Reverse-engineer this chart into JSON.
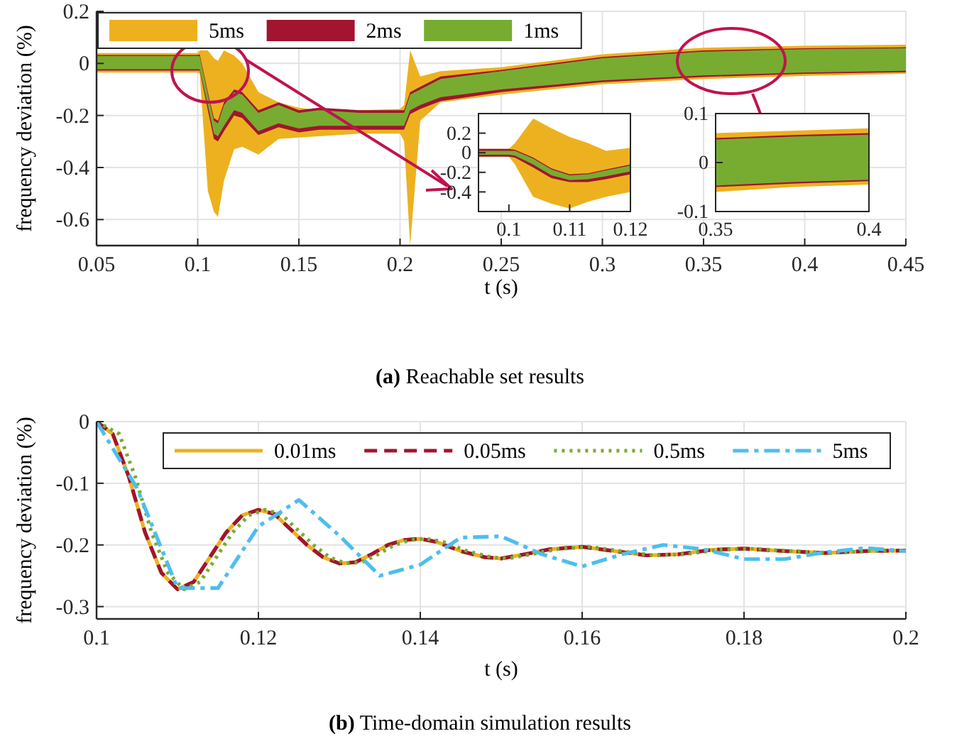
{
  "chart_data": [
    {
      "type": "area",
      "title": "(a) Reachable set results",
      "xlabel": "t (s)",
      "ylabel": "frequency deviation (%)",
      "x": [
        0.05,
        0.1,
        0.101,
        0.105,
        0.108,
        0.11,
        0.113,
        0.118,
        0.122,
        0.13,
        0.14,
        0.15,
        0.16,
        0.18,
        0.2,
        0.202,
        0.205,
        0.21,
        0.22,
        0.25,
        0.3,
        0.35,
        0.4,
        0.45
      ],
      "series": [
        {
          "name": "5ms",
          "color": "#edb120",
          "values": [
            null,
            null,
            null,
            null,
            null,
            null,
            null,
            null,
            null,
            null,
            null,
            null,
            null,
            null,
            null,
            null,
            null,
            null,
            null,
            null,
            null,
            null,
            null,
            null
          ],
          "lower": [
            -0.035,
            -0.035,
            -0.04,
            -0.49,
            -0.57,
            -0.59,
            -0.45,
            -0.33,
            -0.32,
            -0.35,
            -0.29,
            -0.285,
            -0.28,
            -0.27,
            -0.27,
            -0.3,
            -0.7,
            -0.22,
            -0.15,
            -0.12,
            -0.08,
            -0.06,
            -0.048,
            -0.04
          ],
          "upper": [
            0.04,
            0.04,
            0.05,
            0.05,
            0.02,
            0.01,
            0.05,
            0.03,
            0.0,
            -0.11,
            -0.15,
            -0.17,
            -0.18,
            -0.18,
            -0.175,
            -0.16,
            0.05,
            -0.05,
            -0.03,
            -0.015,
            0.035,
            0.06,
            0.068,
            0.072
          ]
        },
        {
          "name": "2ms",
          "color": "#a2142f",
          "values": [
            null,
            null,
            null,
            null,
            null,
            null,
            null,
            null,
            null,
            null,
            null,
            null,
            null,
            null,
            null,
            null,
            null,
            null,
            null,
            null,
            null,
            null,
            null,
            null
          ],
          "lower": [
            -0.028,
            -0.028,
            -0.028,
            -0.18,
            -0.29,
            -0.3,
            -0.26,
            -0.2,
            -0.21,
            -0.275,
            -0.245,
            -0.265,
            -0.255,
            -0.255,
            -0.255,
            -0.255,
            -0.195,
            -0.175,
            -0.145,
            -0.11,
            -0.072,
            -0.052,
            -0.04,
            -0.034
          ],
          "upper": [
            0.032,
            0.032,
            0.035,
            -0.11,
            -0.21,
            -0.22,
            -0.15,
            -0.1,
            -0.11,
            -0.18,
            -0.15,
            -0.18,
            -0.17,
            -0.18,
            -0.18,
            -0.18,
            -0.11,
            -0.09,
            -0.05,
            -0.025,
            0.025,
            0.05,
            0.058,
            0.062
          ]
        },
        {
          "name": "1ms",
          "color": "#77ac30",
          "values": [
            null,
            null,
            null,
            null,
            null,
            null,
            null,
            null,
            null,
            null,
            null,
            null,
            null,
            null,
            null,
            null,
            null,
            null,
            null,
            null,
            null,
            null,
            null,
            null
          ],
          "lower": [
            -0.022,
            -0.022,
            -0.022,
            -0.16,
            -0.27,
            -0.28,
            -0.24,
            -0.18,
            -0.19,
            -0.26,
            -0.23,
            -0.25,
            -0.24,
            -0.24,
            -0.24,
            -0.24,
            -0.18,
            -0.16,
            -0.13,
            -0.1,
            -0.065,
            -0.046,
            -0.035,
            -0.028
          ],
          "upper": [
            0.028,
            0.028,
            0.028,
            -0.12,
            -0.22,
            -0.23,
            -0.16,
            -0.11,
            -0.12,
            -0.19,
            -0.16,
            -0.19,
            -0.18,
            -0.19,
            -0.19,
            -0.19,
            -0.12,
            -0.1,
            -0.06,
            -0.03,
            0.02,
            0.045,
            0.055,
            0.058
          ]
        }
      ],
      "xlim": [
        0.05,
        0.45
      ],
      "xticks": [
        0.05,
        0.1,
        0.15,
        0.2,
        0.25,
        0.3,
        0.35,
        0.4,
        0.45
      ],
      "ylim": [
        -0.7,
        0.2
      ],
      "yticks": [
        -0.6,
        -0.4,
        -0.2,
        0,
        0.2
      ],
      "grid": true,
      "legend": "top left"
    },
    {
      "type": "area",
      "x": [
        0.095,
        0.1,
        0.101,
        0.104,
        0.107,
        0.11,
        0.113,
        0.116,
        0.12
      ],
      "series": [
        {
          "color": "#edb120",
          "values": [
            null,
            null,
            null,
            null,
            null,
            null,
            null,
            null,
            null
          ],
          "lower": [
            -0.04,
            -0.04,
            -0.12,
            -0.45,
            -0.52,
            -0.57,
            -0.5,
            -0.45,
            -0.4
          ],
          "upper": [
            0.04,
            0.04,
            0.1,
            0.35,
            0.25,
            0.16,
            0.1,
            0.02,
            0.05
          ]
        },
        {
          "color": "#a2142f",
          "values": [
            null,
            null,
            null,
            null,
            null,
            null,
            null,
            null,
            null
          ],
          "lower": [
            -0.04,
            -0.04,
            -0.05,
            -0.15,
            -0.26,
            -0.3,
            -0.3,
            -0.27,
            -0.22
          ],
          "upper": [
            0.04,
            0.04,
            0.03,
            -0.05,
            -0.16,
            -0.22,
            -0.21,
            -0.17,
            -0.12
          ]
        },
        {
          "color": "#77ac30",
          "values": [
            null,
            null,
            null,
            null,
            null,
            null,
            null,
            null,
            null
          ],
          "lower": [
            -0.02,
            -0.02,
            -0.03,
            -0.12,
            -0.23,
            -0.28,
            -0.27,
            -0.24,
            -0.19
          ],
          "upper": [
            0.02,
            0.02,
            0.02,
            -0.06,
            -0.17,
            -0.23,
            -0.22,
            -0.18,
            -0.13
          ]
        }
      ],
      "xlim": [
        0.095,
        0.12
      ],
      "xticks": [
        0.1,
        0.11,
        0.12
      ],
      "ylim": [
        -0.6,
        0.4
      ],
      "yticks": [
        -0.4,
        -0.2,
        0,
        0.2
      ]
    },
    {
      "type": "area",
      "x": [
        0.35,
        0.375,
        0.4
      ],
      "series": [
        {
          "color": "#edb120",
          "values": [
            null,
            null,
            null
          ],
          "lower": [
            -0.06,
            -0.05,
            -0.045
          ],
          "upper": [
            0.06,
            0.065,
            0.07
          ]
        },
        {
          "color": "#a2142f",
          "values": [
            null,
            null,
            null
          ],
          "lower": [
            -0.05,
            -0.043,
            -0.038
          ],
          "upper": [
            0.05,
            0.056,
            0.06
          ]
        },
        {
          "color": "#77ac30",
          "values": [
            null,
            null,
            null
          ],
          "lower": [
            -0.047,
            -0.04,
            -0.035
          ],
          "upper": [
            0.047,
            0.053,
            0.057
          ]
        }
      ],
      "xlim": [
        0.35,
        0.4
      ],
      "xticks": [
        0.35,
        0.4
      ],
      "ylim": [
        -0.1,
        0.1
      ],
      "yticks": [
        -0.1,
        0,
        0.1
      ]
    },
    {
      "type": "line",
      "title": "(b) Time-domain simulation results",
      "xlabel": "t (s)",
      "ylabel": "frequency deviation (%)",
      "x": [
        0.1,
        0.102,
        0.104,
        0.106,
        0.108,
        0.11,
        0.112,
        0.114,
        0.116,
        0.118,
        0.12,
        0.122,
        0.124,
        0.126,
        0.128,
        0.13,
        0.132,
        0.134,
        0.136,
        0.138,
        0.14,
        0.142,
        0.145,
        0.148,
        0.15,
        0.153,
        0.156,
        0.16,
        0.164,
        0.168,
        0.172,
        0.176,
        0.18,
        0.185,
        0.19,
        0.195,
        0.2
      ],
      "series": [
        {
          "name": "0.01ms",
          "color": "#edb120",
          "line_style": "solid",
          "values": [
            0,
            -0.02,
            -0.09,
            -0.18,
            -0.245,
            -0.272,
            -0.26,
            -0.22,
            -0.18,
            -0.152,
            -0.143,
            -0.15,
            -0.175,
            -0.2,
            -0.22,
            -0.23,
            -0.228,
            -0.215,
            -0.2,
            -0.192,
            -0.19,
            -0.195,
            -0.21,
            -0.22,
            -0.222,
            -0.215,
            -0.207,
            -0.203,
            -0.21,
            -0.217,
            -0.215,
            -0.208,
            -0.206,
            -0.21,
            -0.213,
            -0.21,
            -0.209
          ]
        },
        {
          "name": "0.05ms",
          "color": "#a2142f",
          "line_style": "dashed",
          "values": [
            0,
            -0.02,
            -0.09,
            -0.18,
            -0.245,
            -0.272,
            -0.26,
            -0.22,
            -0.18,
            -0.152,
            -0.143,
            -0.15,
            -0.175,
            -0.2,
            -0.22,
            -0.23,
            -0.228,
            -0.215,
            -0.2,
            -0.192,
            -0.19,
            -0.195,
            -0.21,
            -0.22,
            -0.222,
            -0.215,
            -0.207,
            -0.203,
            -0.21,
            -0.217,
            -0.215,
            -0.208,
            -0.206,
            -0.21,
            -0.213,
            -0.21,
            -0.209
          ]
        },
        {
          "name": "0.5ms",
          "color": "#77ac30",
          "line_style": "dotted",
          "x": [
            0.1,
            0.1028,
            0.1048,
            0.1068,
            0.1088,
            0.1108,
            0.1128,
            0.1148,
            0.1168,
            0.1188,
            0.1208,
            0.1228,
            0.1248,
            0.1268,
            0.1288,
            0.1308,
            0.1328,
            0.1348,
            0.1368,
            0.1388,
            0.1408,
            0.1428,
            0.1458,
            0.1488,
            0.1508,
            0.1538,
            0.1568,
            0.1608,
            0.1648,
            0.1688,
            0.1728,
            0.1768,
            0.1808,
            0.1858,
            0.1908,
            0.1958,
            0.2
          ],
          "values": [
            0,
            -0.02,
            -0.09,
            -0.18,
            -0.245,
            -0.272,
            -0.26,
            -0.22,
            -0.18,
            -0.152,
            -0.143,
            -0.15,
            -0.175,
            -0.2,
            -0.22,
            -0.23,
            -0.228,
            -0.215,
            -0.2,
            -0.192,
            -0.19,
            -0.195,
            -0.21,
            -0.22,
            -0.222,
            -0.215,
            -0.207,
            -0.203,
            -0.21,
            -0.217,
            -0.215,
            -0.208,
            -0.206,
            -0.21,
            -0.213,
            -0.21,
            -0.209
          ]
        },
        {
          "name": "5ms",
          "color": "#4dbeee",
          "line_style": "dashdot",
          "x": [
            0.1,
            0.105,
            0.11,
            0.115,
            0.12,
            0.125,
            0.13,
            0.135,
            0.14,
            0.145,
            0.15,
            0.155,
            0.16,
            0.165,
            0.17,
            0.175,
            0.18,
            0.185,
            0.19,
            0.195,
            0.2
          ],
          "values": [
            0,
            -0.108,
            -0.27,
            -0.27,
            -0.17,
            -0.127,
            -0.185,
            -0.25,
            -0.232,
            -0.188,
            -0.186,
            -0.215,
            -0.235,
            -0.215,
            -0.2,
            -0.207,
            -0.223,
            -0.223,
            -0.212,
            -0.205,
            -0.21
          ]
        }
      ],
      "xlim": [
        0.1,
        0.2
      ],
      "xticks": [
        0.1,
        0.12,
        0.14,
        0.16,
        0.18,
        0.2
      ],
      "ylim": [
        -0.32,
        0
      ],
      "yticks": [
        -0.3,
        -0.2,
        -0.1,
        0
      ],
      "grid": true,
      "legend": "top",
      "marker": "none"
    }
  ]
}
